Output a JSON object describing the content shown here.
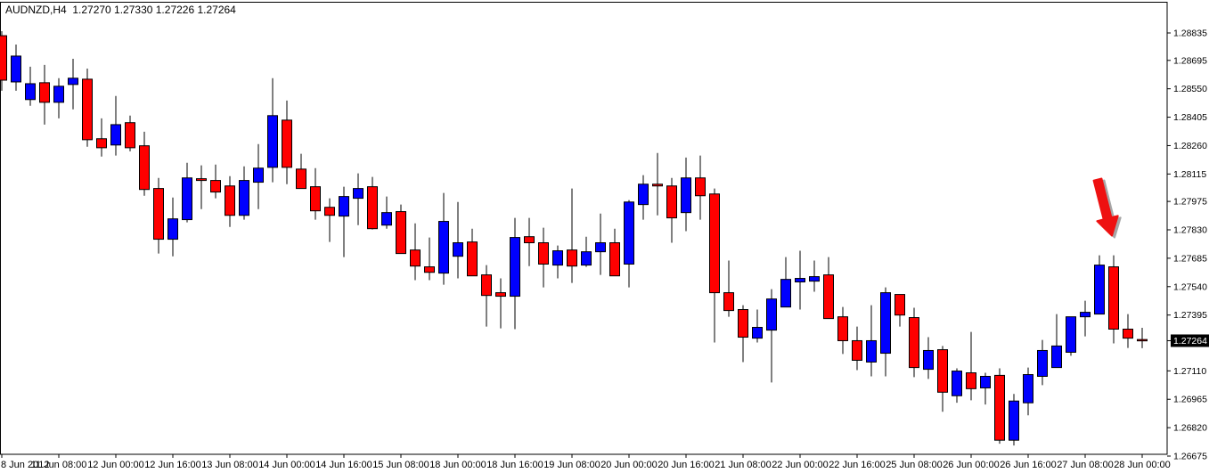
{
  "title": {
    "symbol": "AUDNZD",
    "timeframe": "H4",
    "open": "1.27270",
    "high": "1.27330",
    "low": "1.27226",
    "close": "1.27264",
    "text": "AUDNZD,H4  1.27270 1.27330 1.27226 1.27264"
  },
  "colors": {
    "background": "#ffffff",
    "border": "#000000",
    "text": "#000000",
    "bull": "#0000ff",
    "bear": "#ff0000",
    "wick": "#000000",
    "price_box_bg": "#000000",
    "price_box_text": "#ffffff",
    "arrow": "#ee1111",
    "arrow_shadow": "#a6a6a6"
  },
  "y_axis": {
    "labels": [
      "1.28835",
      "1.28695",
      "1.28550",
      "1.28405",
      "1.28260",
      "1.28115",
      "1.27975",
      "1.27830",
      "1.27685",
      "1.27540",
      "1.27395",
      "1.27110",
      "1.26965",
      "1.26820",
      "1.26675"
    ],
    "price_box": "1.27264"
  },
  "x_axis": {
    "labels": [
      "8 Jun 2012",
      "11 Jun 08:00",
      "12 Jun 00:00",
      "12 Jun 16:00",
      "13 Jun 08:00",
      "14 Jun 00:00",
      "14 Jun 16:00",
      "15 Jun 08:00",
      "18 Jun 00:00",
      "18 Jun 16:00",
      "19 Jun 08:00",
      "20 Jun 00:00",
      "20 Jun 16:00",
      "21 Jun 08:00",
      "22 Jun 00:00",
      "22 Jun 16:00",
      "25 Jun 08:00",
      "26 Jun 00:00",
      "26 Jun 16:00",
      "27 Jun 08:00",
      "28 Jun 00:00"
    ],
    "candles_per_label": 4
  },
  "chart_data": {
    "type": "candlestick",
    "title": "AUDNZD,H4",
    "symbol": "AUDNZD",
    "timeframe": "H4",
    "grid": "off",
    "y_range": {
      "top_price": 1.28835,
      "bottom_price": 1.26675,
      "tick_step": 0.00145
    },
    "current_price": 1.27264,
    "ohlc_format": "[open, high, low, close]",
    "candles": [
      [
        1.28821,
        1.28844,
        1.2854,
        1.28594
      ],
      [
        1.28585,
        1.28776,
        1.2854,
        1.28717
      ],
      [
        1.28495,
        1.28663,
        1.28463,
        1.28576
      ],
      [
        1.28581,
        1.28672,
        1.28367,
        1.28481
      ],
      [
        1.28481,
        1.28604,
        1.28399,
        1.28563
      ],
      [
        1.28572,
        1.28703,
        1.28445,
        1.28604
      ],
      [
        1.28599,
        1.28653,
        1.28254,
        1.2829
      ],
      [
        1.28295,
        1.28399,
        1.28204,
        1.28249
      ],
      [
        1.28263,
        1.28513,
        1.28209,
        1.28367
      ],
      [
        1.28377,
        1.28413,
        1.28231,
        1.28249
      ],
      [
        1.28259,
        1.28331,
        1.28004,
        1.28036
      ],
      [
        1.28041,
        1.28095,
        1.27709,
        1.27782
      ],
      [
        1.27782,
        1.27995,
        1.27695,
        1.27886
      ],
      [
        1.27882,
        1.28172,
        1.27868,
        1.28095
      ],
      [
        1.28091,
        1.28159,
        1.27936,
        1.28082
      ],
      [
        1.28082,
        1.28163,
        1.27991,
        1.28023
      ],
      [
        1.28054,
        1.28104,
        1.27845,
        1.27904
      ],
      [
        1.27904,
        1.28154,
        1.27882,
        1.28082
      ],
      [
        1.28073,
        1.28268,
        1.27936,
        1.28145
      ],
      [
        1.28149,
        1.28604,
        1.28073,
        1.28413
      ],
      [
        1.2839,
        1.2849,
        1.28063,
        1.28149
      ],
      [
        1.2814,
        1.28218,
        1.28041,
        1.28041
      ],
      [
        1.2805,
        1.28145,
        1.27882,
        1.27927
      ],
      [
        1.27945,
        1.27991,
        1.27768,
        1.27904
      ],
      [
        1.279,
        1.2805,
        1.27691,
        1.28
      ],
      [
        1.27991,
        1.28118,
        1.27854,
        1.28041
      ],
      [
        1.2805,
        1.281,
        1.27832,
        1.27836
      ],
      [
        1.27854,
        1.28,
        1.27836,
        1.27918
      ],
      [
        1.27923,
        1.27959,
        1.27709,
        1.27709
      ],
      [
        1.27727,
        1.27863,
        1.27573,
        1.27645
      ],
      [
        1.27641,
        1.27791,
        1.27573,
        1.27613
      ],
      [
        1.27609,
        1.28018,
        1.2755,
        1.27873
      ],
      [
        1.27695,
        1.27972,
        1.27582,
        1.27764
      ],
      [
        1.27768,
        1.27836,
        1.27595,
        1.27595
      ],
      [
        1.276,
        1.2765,
        1.27336,
        1.27495
      ],
      [
        1.27509,
        1.27582,
        1.27327,
        1.27491
      ],
      [
        1.27491,
        1.27891,
        1.27323,
        1.27791
      ],
      [
        1.27795,
        1.27891,
        1.27645,
        1.27764
      ],
      [
        1.27764,
        1.27841,
        1.27536,
        1.27655
      ],
      [
        1.2765,
        1.2775,
        1.27582,
        1.27723
      ],
      [
        1.27727,
        1.28041,
        1.27559,
        1.27645
      ],
      [
        1.2765,
        1.27795,
        1.27641,
        1.27718
      ],
      [
        1.27718,
        1.27913,
        1.276,
        1.27764
      ],
      [
        1.27764,
        1.27836,
        1.27595,
        1.27595
      ],
      [
        1.27655,
        1.27982,
        1.27536,
        1.27972
      ],
      [
        1.27959,
        1.28109,
        1.27882,
        1.28063
      ],
      [
        1.28063,
        1.28222,
        1.27904,
        1.28054
      ],
      [
        1.28054,
        1.28095,
        1.27764,
        1.27891
      ],
      [
        1.27918,
        1.28199,
        1.27823,
        1.28095
      ],
      [
        1.28095,
        1.28209,
        1.27882,
        1.28004
      ],
      [
        1.28013,
        1.28041,
        1.27255,
        1.27509
      ],
      [
        1.27509,
        1.27673,
        1.27386,
        1.27418
      ],
      [
        1.27423,
        1.27445,
        1.27155,
        1.27282
      ],
      [
        1.27277,
        1.27423,
        1.27255,
        1.27332
      ],
      [
        1.27318,
        1.27527,
        1.27051,
        1.27477
      ],
      [
        1.27436,
        1.27691,
        1.27436,
        1.27577
      ],
      [
        1.27564,
        1.27723,
        1.27423,
        1.27582
      ],
      [
        1.27568,
        1.27673,
        1.27514,
        1.27591
      ],
      [
        1.276,
        1.27691,
        1.27377,
        1.27377
      ],
      [
        1.27386,
        1.27436,
        1.27196,
        1.27264
      ],
      [
        1.27264,
        1.27336,
        1.27114,
        1.27164
      ],
      [
        1.27155,
        1.27445,
        1.27082,
        1.27264
      ],
      [
        1.272,
        1.27536,
        1.27082,
        1.27509
      ],
      [
        1.275,
        1.275,
        1.27336,
        1.27395
      ],
      [
        1.27382,
        1.27432,
        1.27078,
        1.27127
      ],
      [
        1.27118,
        1.27282,
        1.27069,
        1.27214
      ],
      [
        1.27218,
        1.27237,
        1.26901,
        1.27001
      ],
      [
        1.26983,
        1.27123,
        1.26947,
        1.27109
      ],
      [
        1.271,
        1.27309,
        1.2696,
        1.27019
      ],
      [
        1.27023,
        1.271,
        1.26938,
        1.27082
      ],
      [
        1.27087,
        1.27123,
        1.26738,
        1.26756
      ],
      [
        1.26756,
        1.26992,
        1.26729,
        1.26956
      ],
      [
        1.26947,
        1.27127,
        1.26883,
        1.27091
      ],
      [
        1.27082,
        1.27268,
        1.27037,
        1.27214
      ],
      [
        1.27127,
        1.274,
        1.27127,
        1.27237
      ],
      [
        1.27205,
        1.27386,
        1.27187,
        1.27386
      ],
      [
        1.27386,
        1.27468,
        1.27286,
        1.27409
      ],
      [
        1.274,
        1.277,
        1.274,
        1.2765
      ],
      [
        1.27641,
        1.277,
        1.2725,
        1.27323
      ],
      [
        1.27323,
        1.274,
        1.27227,
        1.27277
      ],
      [
        1.2727,
        1.2733,
        1.27226,
        1.27264
      ]
    ],
    "annotations": [
      {
        "type": "arrow",
        "direction": "down-right",
        "color": "#ee1111",
        "shadow_color": "#a6a6a6",
        "candle_index": 78
      }
    ]
  }
}
